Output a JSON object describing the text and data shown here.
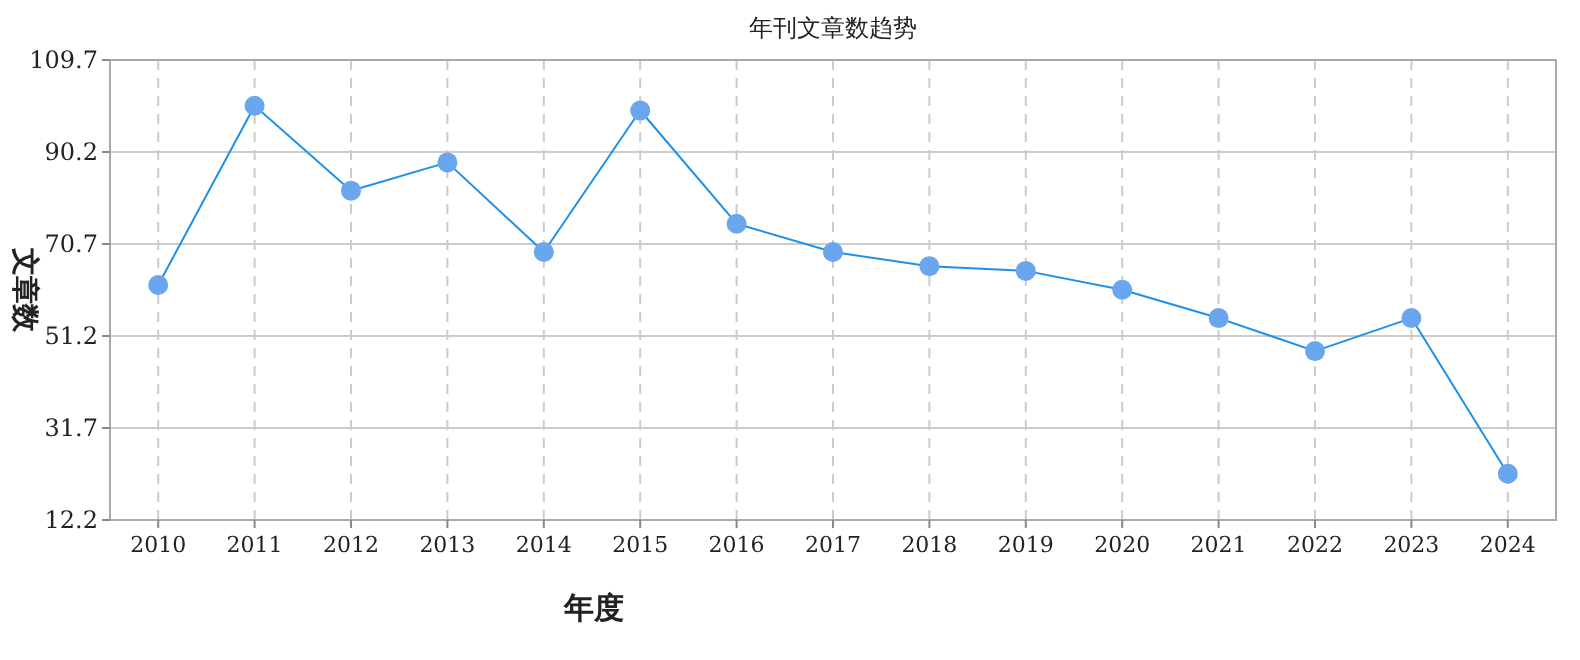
{
  "chart_data": {
    "type": "line",
    "title": "年刊文章数趋势",
    "xlabel": "年度",
    "ylabel": "文章数",
    "categories": [
      "2010",
      "2011",
      "2012",
      "2013",
      "2014",
      "2015",
      "2016",
      "2017",
      "2018",
      "2019",
      "2020",
      "2021",
      "2022",
      "2023",
      "2024"
    ],
    "series": [
      {
        "color": "#1e90e8",
        "values": [
          62,
          100,
          82,
          88,
          69,
          99,
          75,
          69,
          66,
          65,
          61,
          55,
          48,
          55,
          22
        ]
      }
    ],
    "ylim": [
      12.2,
      109.7
    ],
    "yticks": [
      12.2,
      31.7,
      51.2,
      70.7,
      90.2,
      109.7
    ],
    "grid": true,
    "marker": "circle",
    "line_style": "solid"
  }
}
